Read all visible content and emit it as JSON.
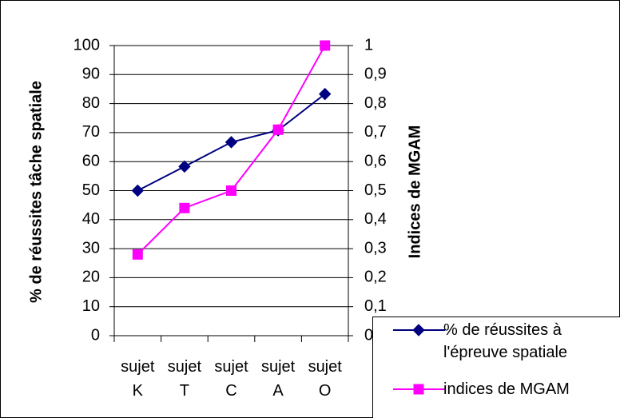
{
  "chart_data": {
    "type": "line",
    "ylabel": "% de réussites tâche spatiale",
    "y2label": "Indices de MGAM",
    "categories": [
      "sujet K",
      "sujet T",
      "sujet C",
      "sujet A",
      "sujet O"
    ],
    "series": [
      {
        "name": "% de réussites à l'épreuve spatiale",
        "color": "#000080",
        "marker": "diamond",
        "values": [
          50,
          58.3,
          66.7,
          70.8,
          83.3
        ]
      },
      {
        "name": "indices de MGAM",
        "color": "#ff00ff",
        "marker": "square",
        "axis": "y2",
        "values": [
          0.28,
          0.44,
          0.5,
          0.71,
          1
        ]
      }
    ],
    "ylim": [
      0,
      100
    ],
    "yticks": [
      0,
      10,
      20,
      30,
      40,
      50,
      60,
      70,
      80,
      90,
      100
    ],
    "y2lim": [
      0,
      1
    ],
    "y2ticks": [
      0,
      {
        "value": 0.1,
        "label": "0,1"
      },
      {
        "value": 0.2,
        "label": "0,2"
      },
      {
        "value": 0.3,
        "label": "0,3"
      },
      {
        "value": 0.4,
        "label": "0,4"
      },
      {
        "value": 0.5,
        "label": "0,5"
      },
      {
        "value": 0.6,
        "label": "0,6"
      },
      {
        "value": 0.7,
        "label": "0,7"
      },
      {
        "value": 0.8,
        "label": "0,8"
      },
      {
        "value": 0.9,
        "label": "0,9"
      },
      1
    ],
    "grid": true,
    "legend_position": "lower right"
  }
}
